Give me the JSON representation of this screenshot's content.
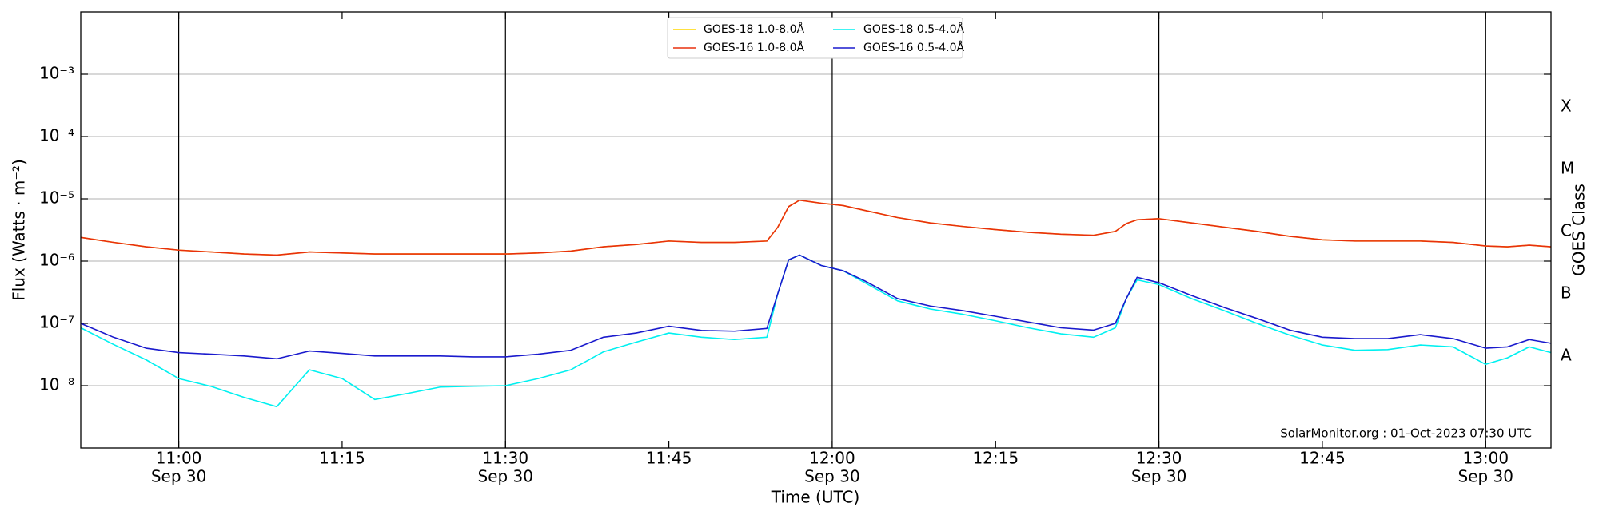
{
  "chart_data": {
    "type": "line",
    "xlabel": "Time (UTC)",
    "ylabel": "Flux (Watts · m⁻²)",
    "y2label": "GOES Class",
    "annotation": "SolarMonitor.org : 01-Oct-2023 07:30 UTC",
    "log_y": true,
    "xgrid": true,
    "ygrid": true,
    "legend": "upper center",
    "x": [
      "10:51",
      "10:54",
      "10:57",
      "11:00",
      "11:03",
      "11:06",
      "11:09",
      "11:12",
      "11:15",
      "11:18",
      "11:21",
      "11:24",
      "11:27",
      "11:30",
      "11:33",
      "11:36",
      "11:39",
      "11:42",
      "11:45",
      "11:48",
      "11:51",
      "11:54",
      "11:55",
      "11:56",
      "11:57",
      "11:59",
      "12:01",
      "12:03",
      "12:06",
      "12:09",
      "12:12",
      "12:15",
      "12:18",
      "12:21",
      "12:24",
      "12:26",
      "12:27",
      "12:28",
      "12:30",
      "12:33",
      "12:36",
      "12:39",
      "12:42",
      "12:45",
      "12:48",
      "12:51",
      "12:54",
      "12:57",
      "13:00",
      "13:02",
      "13:04",
      "13:06"
    ],
    "xlim": [
      "10:51",
      "13:06"
    ],
    "xticks": [
      {
        "value": "11:00",
        "label": [
          "11:00",
          "Sep 30"
        ]
      },
      "11:15",
      {
        "value": "11:30",
        "label": [
          "11:30",
          "Sep 30"
        ]
      },
      "11:45",
      {
        "value": "12:00",
        "label": [
          "12:00",
          "Sep 30"
        ]
      },
      "12:15",
      {
        "value": "12:30",
        "label": [
          "12:30",
          "Sep 30"
        ]
      },
      "12:45",
      {
        "value": "13:00",
        "label": [
          "13:00",
          "Sep 30"
        ]
      }
    ],
    "xgrid_ticks": [
      "11:00",
      "11:30",
      "12:00",
      "12:30",
      "13:00"
    ],
    "ylim": [
      1e-09,
      0.01
    ],
    "yticks": [
      {
        "value": 1e-08,
        "label": "10⁻⁸"
      },
      {
        "value": 1e-07,
        "label": "10⁻⁷"
      },
      {
        "value": 1e-06,
        "label": "10⁻⁶"
      },
      {
        "value": 1e-05,
        "label": "10⁻⁵"
      },
      {
        "value": 0.0001,
        "label": "10⁻⁴"
      },
      {
        "value": 0.001,
        "label": "10⁻³"
      }
    ],
    "y2lim": [
      1e-09,
      0.01
    ],
    "y2ticks": [
      {
        "value": 3e-08,
        "label": "A"
      },
      {
        "value": 3e-07,
        "label": "B"
      },
      {
        "value": 3e-06,
        "label": "C"
      },
      {
        "value": 3e-05,
        "label": "M"
      },
      {
        "value": 0.0003,
        "label": "X"
      }
    ],
    "series": [
      {
        "name": "GOES-18 1.0-8.0Å",
        "color": "#ffd700",
        "values": [
          2.4e-06,
          2e-06,
          1.7e-06,
          1.5e-06,
          1.4e-06,
          1.3e-06,
          1.25e-06,
          1.4e-06,
          1.35e-06,
          1.3e-06,
          1.3e-06,
          1.3e-06,
          1.3e-06,
          1.3e-06,
          1.35e-06,
          1.45e-06,
          1.7e-06,
          1.85e-06,
          2.1e-06,
          2e-06,
          2e-06,
          2.1e-06,
          3.5e-06,
          7.5e-06,
          9.5e-06,
          8.5e-06,
          7.8e-06,
          6.5e-06,
          5e-06,
          4.1e-06,
          3.6e-06,
          3.2e-06,
          2.9e-06,
          2.7e-06,
          2.6e-06,
          3e-06,
          4e-06,
          4.6e-06,
          4.8e-06,
          4.1e-06,
          3.5e-06,
          3e-06,
          2.5e-06,
          2.2e-06,
          2.1e-06,
          2.1e-06,
          2.1e-06,
          2e-06,
          1.75e-06,
          1.7e-06,
          1.8e-06,
          1.7e-06
        ]
      },
      {
        "name": "GOES-16 1.0-8.0Å",
        "color": "#e8300e",
        "values": [
          2.4e-06,
          2e-06,
          1.7e-06,
          1.5e-06,
          1.4e-06,
          1.3e-06,
          1.25e-06,
          1.4e-06,
          1.35e-06,
          1.3e-06,
          1.3e-06,
          1.3e-06,
          1.3e-06,
          1.3e-06,
          1.35e-06,
          1.45e-06,
          1.7e-06,
          1.85e-06,
          2.1e-06,
          2e-06,
          2e-06,
          2.1e-06,
          3.5e-06,
          7.5e-06,
          9.5e-06,
          8.5e-06,
          7.8e-06,
          6.5e-06,
          5e-06,
          4.1e-06,
          3.6e-06,
          3.2e-06,
          2.9e-06,
          2.7e-06,
          2.6e-06,
          3e-06,
          4e-06,
          4.6e-06,
          4.8e-06,
          4.1e-06,
          3.5e-06,
          3e-06,
          2.5e-06,
          2.2e-06,
          2.1e-06,
          2.1e-06,
          2.1e-06,
          2e-06,
          1.75e-06,
          1.7e-06,
          1.8e-06,
          1.7e-06
        ]
      },
      {
        "name": "GOES-18 0.5-4.0Å",
        "color": "#00f0f0",
        "values": [
          8.5e-08,
          4.6e-08,
          2.6e-08,
          1.3e-08,
          9.7e-09,
          6.5e-09,
          4.6e-09,
          1.8e-08,
          1.3e-08,
          6e-09,
          7.5e-09,
          9.5e-09,
          9.8e-09,
          1e-08,
          1.3e-08,
          1.8e-08,
          3.5e-08,
          5e-08,
          7e-08,
          6e-08,
          5.5e-08,
          6e-08,
          3e-07,
          1.05e-06,
          1.25e-06,
          8.5e-07,
          7e-07,
          4.5e-07,
          2.3e-07,
          1.7e-07,
          1.4e-07,
          1.1e-07,
          8.5e-08,
          6.8e-08,
          6e-08,
          8.5e-08,
          2.5e-07,
          5e-07,
          4.2e-07,
          2.5e-07,
          1.6e-07,
          1e-07,
          6.5e-08,
          4.5e-08,
          3.7e-08,
          3.8e-08,
          4.5e-08,
          4.2e-08,
          2.2e-08,
          2.8e-08,
          4.2e-08,
          3.4e-08
        ]
      },
      {
        "name": "GOES-16 0.5-4.0Å",
        "color": "#1a1acd",
        "values": [
          1e-07,
          6e-08,
          4e-08,
          3.4e-08,
          3.2e-08,
          3e-08,
          2.7e-08,
          3.6e-08,
          3.3e-08,
          3e-08,
          3e-08,
          3e-08,
          2.9e-08,
          2.9e-08,
          3.2e-08,
          3.7e-08,
          6e-08,
          7e-08,
          9e-08,
          7.7e-08,
          7.5e-08,
          8.3e-08,
          3e-07,
          1.05e-06,
          1.25e-06,
          8.5e-07,
          7e-07,
          4.8e-07,
          2.5e-07,
          1.9e-07,
          1.6e-07,
          1.3e-07,
          1.05e-07,
          8.5e-08,
          7.8e-08,
          1e-07,
          2.5e-07,
          5.5e-07,
          4.5e-07,
          2.8e-07,
          1.8e-07,
          1.2e-07,
          7.8e-08,
          6e-08,
          5.7e-08,
          5.7e-08,
          6.6e-08,
          5.7e-08,
          4e-08,
          4.2e-08,
          5.5e-08,
          4.8e-08
        ]
      }
    ]
  }
}
